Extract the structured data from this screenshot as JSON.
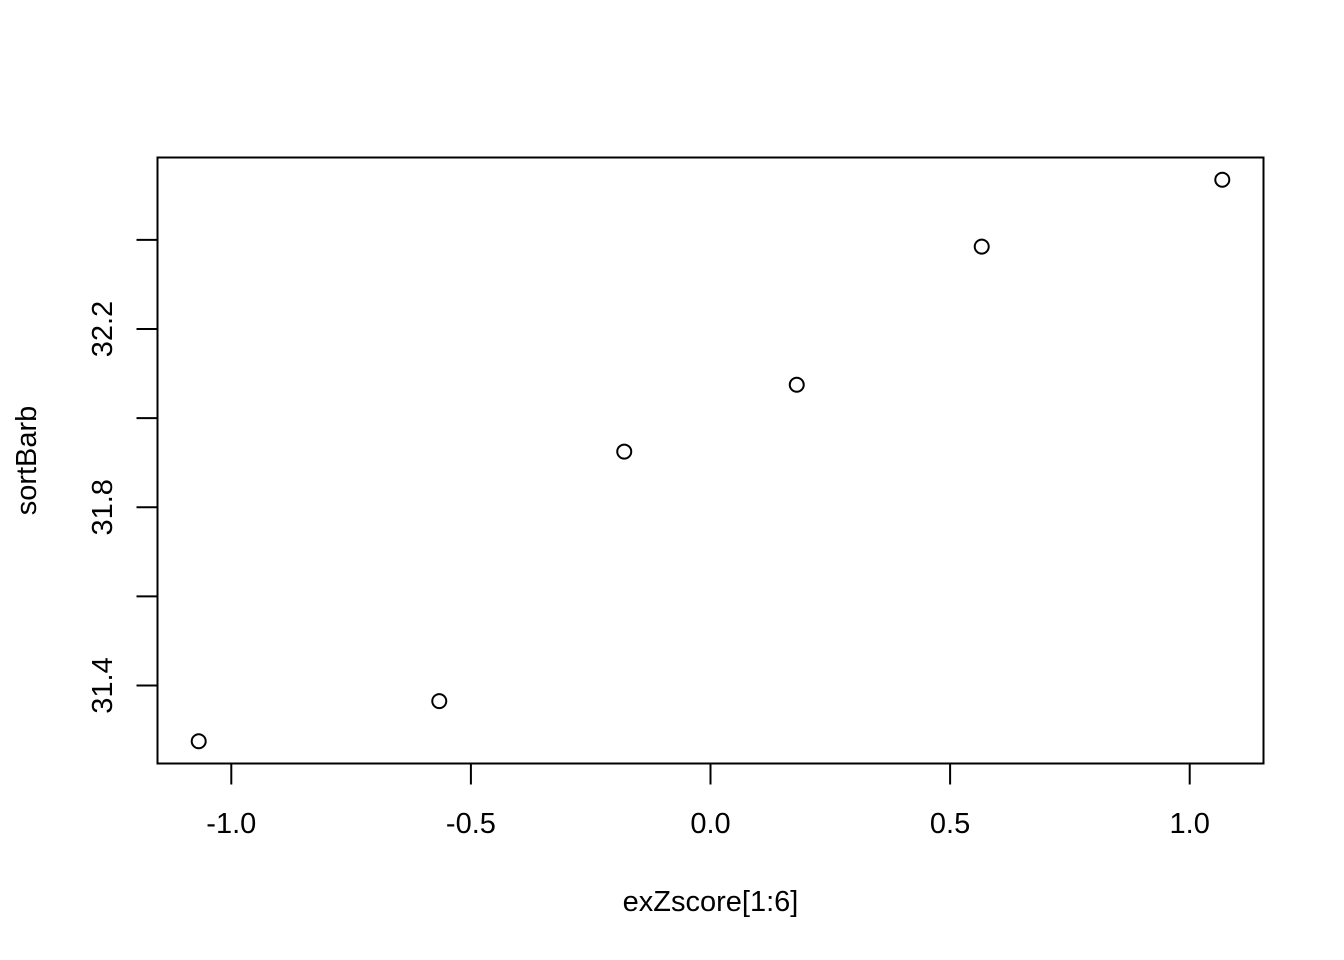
{
  "chart_data": {
    "type": "scatter",
    "title": "",
    "xlabel": "exZscore[1:6]",
    "ylabel": "sortBarb",
    "x": [
      -1.068,
      -0.566,
      -0.18,
      0.18,
      0.566,
      1.068
    ],
    "y": [
      31.275,
      31.365,
      31.925,
      32.075,
      32.385,
      32.535
    ],
    "xlim": [
      -1.154,
      1.154
    ],
    "ylim": [
      31.225,
      32.585
    ],
    "xticks": [
      -1.0,
      -0.5,
      0.0,
      0.5,
      1.0
    ],
    "xtick_labels": [
      "-1.0",
      "-0.5",
      "0.0",
      "0.5",
      "1.0"
    ],
    "yticks": [
      31.4,
      31.6,
      31.8,
      32.0,
      32.2,
      32.4
    ],
    "ytick_labels": [
      "31.4",
      "",
      "31.8",
      "",
      "32.2",
      ""
    ],
    "marker": "open-circle",
    "grid": false,
    "legend": false,
    "colors": {
      "points": "#000000",
      "axes": "#000000",
      "background": "#ffffff"
    }
  }
}
